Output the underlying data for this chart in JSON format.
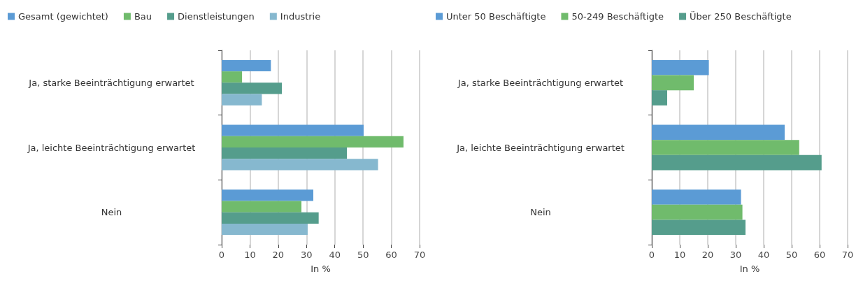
{
  "chart_data": [
    {
      "type": "bar",
      "orientation": "horizontal",
      "xlabel": "In %",
      "categories": [
        "Ja, starke Beeinträchtigung erwartet",
        "Ja, leichte Beeinträchtigung erwartet",
        "Nein"
      ],
      "xlim": [
        0,
        70
      ],
      "xticks": [
        0,
        10,
        20,
        30,
        40,
        50,
        60,
        70
      ],
      "grid": "x",
      "legend": "top left",
      "series": [
        {
          "name": "Gesamt (gewichtet)",
          "color": "#5b9bd5",
          "values": [
            17.4,
            50.2,
            32.4
          ]
        },
        {
          "name": "Bau",
          "color": "#70bb6c",
          "values": [
            7.2,
            64.3,
            28.2
          ]
        },
        {
          "name": "Dienstleistungen",
          "color": "#559d8c",
          "values": [
            21.3,
            44.3,
            34.3
          ]
        },
        {
          "name": "Industrie",
          "color": "#86b8cf",
          "values": [
            14.2,
            55.3,
            30.4
          ]
        }
      ]
    },
    {
      "type": "bar",
      "orientation": "horizontal",
      "xlabel": "In %",
      "categories": [
        "Ja, starke Beeinträchtigung erwartet",
        "Ja, leichte Beeinträchtigung erwartet",
        "Nein"
      ],
      "xlim": [
        0,
        70
      ],
      "xticks": [
        0,
        10,
        20,
        30,
        40,
        50,
        60,
        70
      ],
      "grid": "x",
      "legend": "top left",
      "series": [
        {
          "name": "Unter 50 Beschäftigte",
          "color": "#5b9bd5",
          "values": [
            20.4,
            47.5,
            31.9
          ]
        },
        {
          "name": "50-249 Beschäftigte",
          "color": "#70bb6c",
          "values": [
            15.0,
            52.7,
            32.4
          ]
        },
        {
          "name": "Über 250 Beschäftigte",
          "color": "#559d8c",
          "values": [
            5.5,
            60.7,
            33.5
          ]
        }
      ]
    }
  ]
}
